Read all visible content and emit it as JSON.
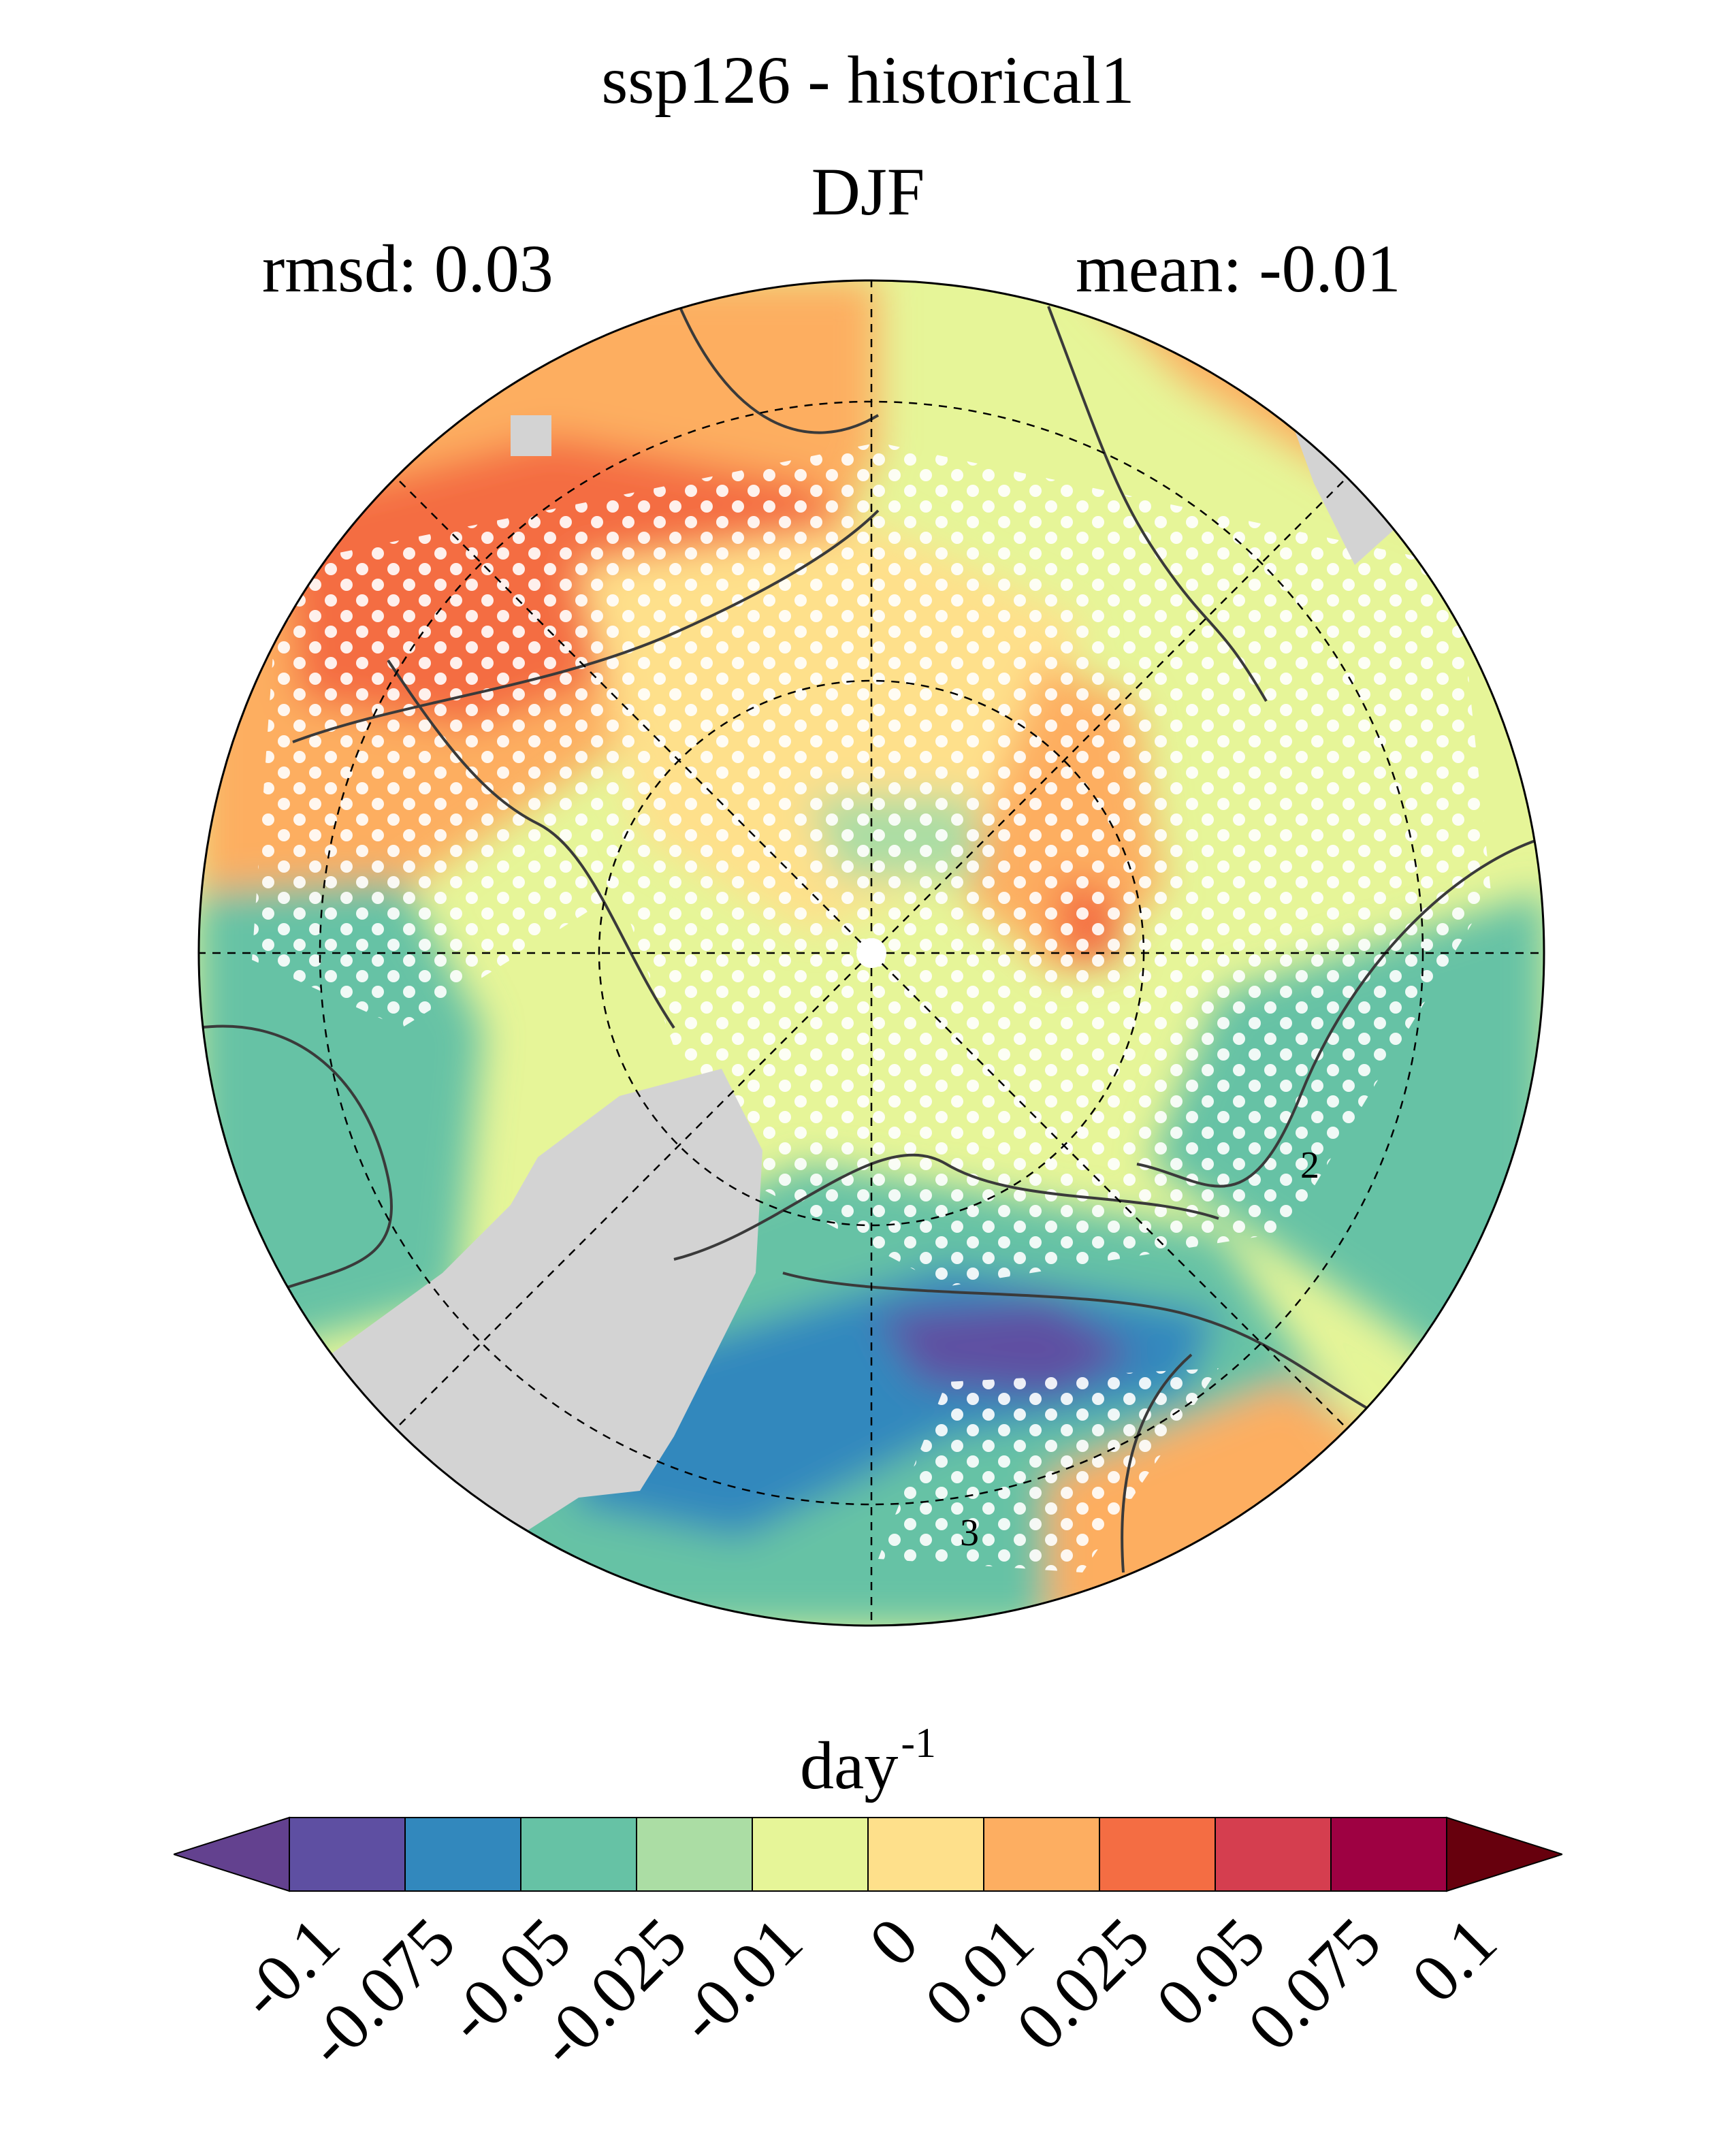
{
  "figure": {
    "title": "ssp126 - historical1",
    "season": "DJF",
    "rmsd_text": "rmsd: 0.03",
    "mean_text": "mean: -0.01",
    "contour_labels": [
      "2",
      "3"
    ]
  },
  "colorbar": {
    "unit": "day",
    "unit_exponent": "-1",
    "ticks": [
      "-0.1",
      "-0.075",
      "-0.05",
      "-0.025",
      "-0.01",
      "0",
      "0.01",
      "0.025",
      "0.05",
      "0.075",
      "0.1"
    ],
    "colors": [
      "#5e4fa2",
      "#3288bd",
      "#66c2a5",
      "#abdda4",
      "#e6f598",
      "#fee08b",
      "#fdae61",
      "#f46d43",
      "#d53e4f",
      "#9e0142"
    ],
    "under_color": "#63418f",
    "over_color": "#67000d"
  },
  "map": {
    "projection": "north polar stereographic",
    "land_mask_color": "#d3d3d3",
    "stippling": true
  }
}
